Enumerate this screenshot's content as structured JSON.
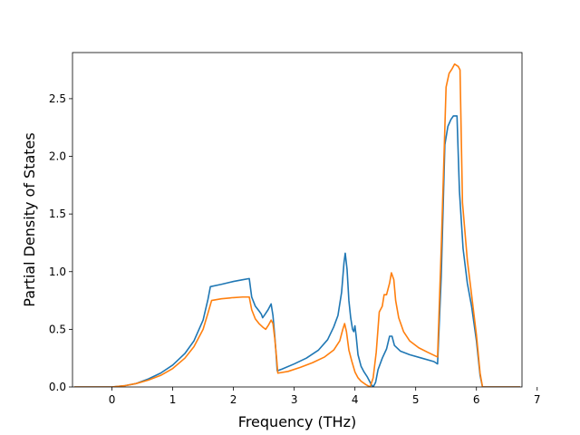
{
  "chart_data": {
    "type": "line",
    "title": "",
    "xlabel": "Frequency (THz)",
    "ylabel": "Partial Density of States",
    "xlim": [
      -0.65,
      6.75
    ],
    "ylim": [
      0,
      2.9
    ],
    "xticks": [
      0,
      1,
      2,
      3,
      4,
      5,
      6,
      7
    ],
    "yticks": [
      0.0,
      0.5,
      1.0,
      1.5,
      2.0,
      2.5
    ],
    "ytick_labels": [
      "0.0",
      "0.5",
      "1.0",
      "1.5",
      "2.0",
      "2.5"
    ],
    "grid": false,
    "legend": "none",
    "series": [
      {
        "color": "#1f77b4",
        "points": [
          [
            -0.62,
            0
          ],
          [
            0,
            0
          ],
          [
            0.2,
            0.01
          ],
          [
            0.4,
            0.03
          ],
          [
            0.6,
            0.07
          ],
          [
            0.8,
            0.12
          ],
          [
            1.0,
            0.19
          ],
          [
            1.2,
            0.29
          ],
          [
            1.35,
            0.4
          ],
          [
            1.5,
            0.58
          ],
          [
            1.58,
            0.76
          ],
          [
            1.62,
            0.87
          ],
          [
            1.8,
            0.89
          ],
          [
            2.0,
            0.915
          ],
          [
            2.15,
            0.93
          ],
          [
            2.26,
            0.94
          ],
          [
            2.3,
            0.78
          ],
          [
            2.36,
            0.7
          ],
          [
            2.42,
            0.66
          ],
          [
            2.46,
            0.63
          ],
          [
            2.48,
            0.6
          ],
          [
            2.52,
            0.63
          ],
          [
            2.57,
            0.67
          ],
          [
            2.62,
            0.72
          ],
          [
            2.65,
            0.62
          ],
          [
            2.68,
            0.44
          ],
          [
            2.7,
            0.3
          ],
          [
            2.72,
            0.14
          ],
          [
            2.8,
            0.155
          ],
          [
            3.0,
            0.2
          ],
          [
            3.2,
            0.25
          ],
          [
            3.4,
            0.32
          ],
          [
            3.55,
            0.41
          ],
          [
            3.65,
            0.52
          ],
          [
            3.72,
            0.62
          ],
          [
            3.78,
            0.82
          ],
          [
            3.82,
            1.08
          ],
          [
            3.84,
            1.16
          ],
          [
            3.87,
            1.02
          ],
          [
            3.9,
            0.75
          ],
          [
            3.93,
            0.6
          ],
          [
            3.96,
            0.5
          ],
          [
            3.98,
            0.48
          ],
          [
            4.0,
            0.53
          ],
          [
            4.02,
            0.44
          ],
          [
            4.05,
            0.28
          ],
          [
            4.1,
            0.18
          ],
          [
            4.15,
            0.13
          ],
          [
            4.2,
            0.09
          ],
          [
            4.24,
            0.05
          ],
          [
            4.27,
            0.02
          ],
          [
            4.3,
            0.0
          ],
          [
            4.34,
            0.04
          ],
          [
            4.38,
            0.15
          ],
          [
            4.45,
            0.25
          ],
          [
            4.52,
            0.33
          ],
          [
            4.57,
            0.44
          ],
          [
            4.61,
            0.44
          ],
          [
            4.65,
            0.36
          ],
          [
            4.75,
            0.31
          ],
          [
            4.9,
            0.28
          ],
          [
            5.1,
            0.25
          ],
          [
            5.3,
            0.22
          ],
          [
            5.36,
            0.2
          ],
          [
            5.42,
            0.95
          ],
          [
            5.48,
            2.1
          ],
          [
            5.53,
            2.26
          ],
          [
            5.58,
            2.32
          ],
          [
            5.62,
            2.35
          ],
          [
            5.68,
            2.35
          ],
          [
            5.72,
            1.7
          ],
          [
            5.78,
            1.2
          ],
          [
            5.85,
            0.9
          ],
          [
            5.92,
            0.7
          ],
          [
            6.0,
            0.4
          ],
          [
            6.06,
            0.1
          ],
          [
            6.1,
            0
          ],
          [
            6.72,
            0
          ]
        ]
      },
      {
        "color": "#ff7f0e",
        "points": [
          [
            -0.62,
            0
          ],
          [
            0,
            0
          ],
          [
            0.2,
            0.01
          ],
          [
            0.4,
            0.03
          ],
          [
            0.6,
            0.06
          ],
          [
            0.8,
            0.1
          ],
          [
            1.0,
            0.16
          ],
          [
            1.2,
            0.25
          ],
          [
            1.35,
            0.35
          ],
          [
            1.5,
            0.5
          ],
          [
            1.58,
            0.64
          ],
          [
            1.64,
            0.75
          ],
          [
            1.8,
            0.765
          ],
          [
            2.0,
            0.775
          ],
          [
            2.15,
            0.78
          ],
          [
            2.26,
            0.78
          ],
          [
            2.3,
            0.67
          ],
          [
            2.36,
            0.59
          ],
          [
            2.42,
            0.55
          ],
          [
            2.48,
            0.52
          ],
          [
            2.53,
            0.5
          ],
          [
            2.58,
            0.54
          ],
          [
            2.62,
            0.58
          ],
          [
            2.65,
            0.55
          ],
          [
            2.68,
            0.42
          ],
          [
            2.71,
            0.25
          ],
          [
            2.73,
            0.12
          ],
          [
            2.9,
            0.135
          ],
          [
            3.1,
            0.17
          ],
          [
            3.3,
            0.21
          ],
          [
            3.5,
            0.26
          ],
          [
            3.65,
            0.32
          ],
          [
            3.75,
            0.4
          ],
          [
            3.8,
            0.5
          ],
          [
            3.83,
            0.55
          ],
          [
            3.86,
            0.48
          ],
          [
            3.9,
            0.32
          ],
          [
            3.95,
            0.22
          ],
          [
            4.0,
            0.13
          ],
          [
            4.05,
            0.08
          ],
          [
            4.1,
            0.05
          ],
          [
            4.18,
            0.02
          ],
          [
            4.25,
            0.0
          ],
          [
            4.3,
            0.08
          ],
          [
            4.35,
            0.3
          ],
          [
            4.4,
            0.65
          ],
          [
            4.45,
            0.7
          ],
          [
            4.48,
            0.8
          ],
          [
            4.52,
            0.8
          ],
          [
            4.57,
            0.9
          ],
          [
            4.6,
            0.99
          ],
          [
            4.64,
            0.93
          ],
          [
            4.67,
            0.75
          ],
          [
            4.72,
            0.6
          ],
          [
            4.8,
            0.48
          ],
          [
            4.9,
            0.4
          ],
          [
            5.05,
            0.34
          ],
          [
            5.2,
            0.3
          ],
          [
            5.36,
            0.26
          ],
          [
            5.42,
            1.2
          ],
          [
            5.5,
            2.6
          ],
          [
            5.55,
            2.72
          ],
          [
            5.6,
            2.76
          ],
          [
            5.64,
            2.8
          ],
          [
            5.7,
            2.78
          ],
          [
            5.73,
            2.75
          ],
          [
            5.77,
            1.6
          ],
          [
            5.85,
            1.1
          ],
          [
            5.92,
            0.8
          ],
          [
            6.0,
            0.45
          ],
          [
            6.06,
            0.12
          ],
          [
            6.1,
            0
          ],
          [
            6.72,
            0
          ]
        ]
      }
    ]
  }
}
